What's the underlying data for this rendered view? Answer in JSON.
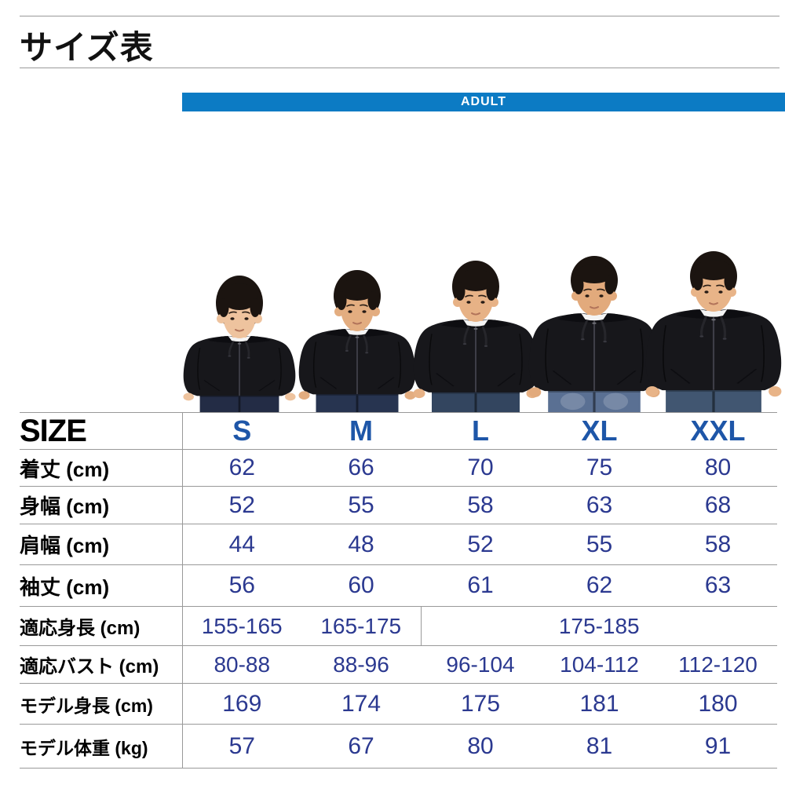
{
  "page": {
    "title": "サイズ表"
  },
  "banner": {
    "label": "ADULT",
    "bg": "#0C7BC4",
    "text_color": "#FFFFFF"
  },
  "photo": {
    "description": "five-male-models-wearing-black-zip-up-hoodies-row",
    "colors": {
      "hoodie": "#17171b",
      "hoodie_shadow": "#0d0d11",
      "hair": "#1b1410",
      "tee": "#f4f4f4",
      "string": "#26262b",
      "zipper": "#3e3e47",
      "zipper_pull": "#6b6b72",
      "skin_tones": [
        "#eec39e",
        "#e3ad80",
        "#e7b286",
        "#e2aa7c",
        "#e8b488"
      ],
      "jeans": [
        "#232c45",
        "#273450",
        "#33455f",
        "#5a7093",
        "#415671"
      ]
    }
  },
  "table": {
    "corner_label": "SIZE",
    "columns": [
      "S",
      "M",
      "L",
      "XL",
      "XXL"
    ],
    "rows": [
      {
        "label": "着丈 (cm)",
        "values": [
          "62",
          "66",
          "70",
          "75",
          "80"
        ]
      },
      {
        "label": "身幅 (cm)",
        "values": [
          "52",
          "55",
          "58",
          "63",
          "68"
        ]
      },
      {
        "label": "肩幅 (cm)",
        "values": [
          "44",
          "48",
          "52",
          "55",
          "58"
        ]
      },
      {
        "label": "袖丈 (cm)",
        "values": [
          "56",
          "60",
          "61",
          "62",
          "63"
        ]
      },
      {
        "label": "適応身長 (cm)",
        "values": [
          "155-165",
          "165-175",
          "175-185"
        ],
        "merged_last_span": "L-XXL"
      },
      {
        "label": "適応バスト (cm)",
        "values": [
          "80-88",
          "88-96",
          "96-104",
          "104-112",
          "112-120"
        ]
      },
      {
        "label": "モデル身長 (cm)",
        "values": [
          "169",
          "174",
          "175",
          "181",
          "180"
        ]
      },
      {
        "label": "モデル体重 (kg)",
        "values": [
          "57",
          "67",
          "80",
          "81",
          "91"
        ]
      }
    ],
    "colors": {
      "header_blue": "#1E56A8",
      "value_navy": "#2B3990",
      "grid": "#999999"
    }
  }
}
